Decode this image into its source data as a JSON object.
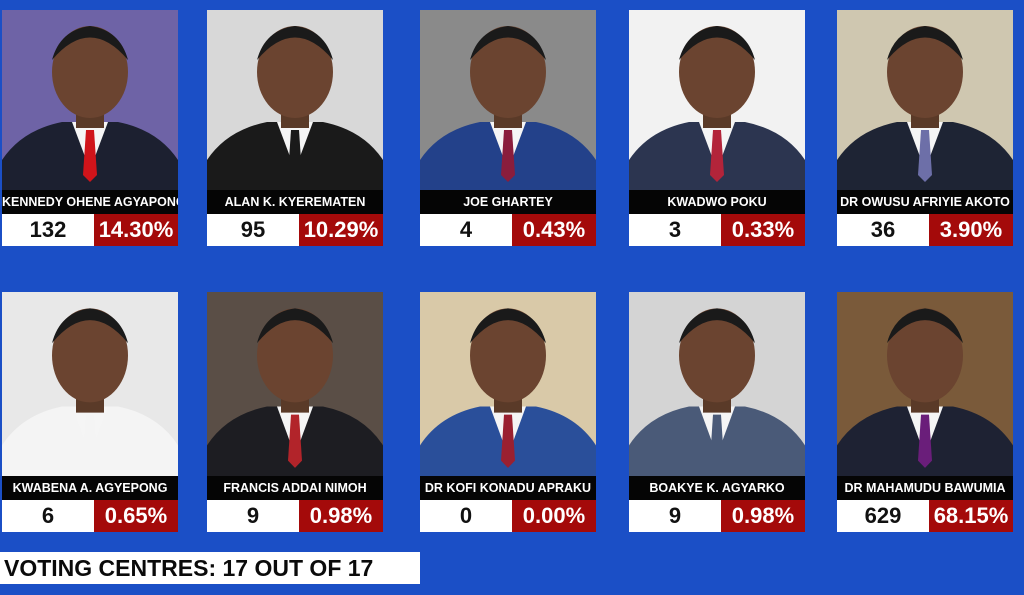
{
  "candidates": [
    {
      "name": "KENNEDY OHENE AGYAPONG",
      "votes": "132",
      "percent": "14.30%",
      "bg": "#6e63a6",
      "suit": "#1c2030",
      "tie": "#d0141a"
    },
    {
      "name": "ALAN K. KYEREMATEN",
      "votes": "95",
      "percent": "10.29%",
      "bg": "#d8d8d8",
      "suit": "#1a1a1a",
      "tie": "#1a1a1a"
    },
    {
      "name": "JOE GHARTEY",
      "votes": "4",
      "percent": "0.43%",
      "bg": "#8a8a8a",
      "suit": "#23418a",
      "tie": "#8a1d3c"
    },
    {
      "name": "KWADWO POKU",
      "votes": "3",
      "percent": "0.33%",
      "bg": "#f2f2f2",
      "suit": "#2c3550",
      "tie": "#b3243a"
    },
    {
      "name": "DR OWUSU AFRIYIE AKOTO",
      "votes": "36",
      "percent": "3.90%",
      "bg": "#cfc7b0",
      "suit": "#1e2434",
      "tie": "#6d6fa8"
    },
    {
      "name": "KWABENA A. AGYEPONG",
      "votes": "6",
      "percent": "0.65%",
      "bg": "#e8e8e8",
      "suit": "#f4f4f4",
      "tie": "#f4f4f4"
    },
    {
      "name": "FRANCIS ADDAI NIMOH",
      "votes": "9",
      "percent": "0.98%",
      "bg": "#5a4e46",
      "suit": "#1d1d22",
      "tie": "#b2242a"
    },
    {
      "name": "DR KOFI KONADU APRAKU",
      "votes": "0",
      "percent": "0.00%",
      "bg": "#d9c9a8",
      "suit": "#2a4f9a",
      "tie": "#9a2030"
    },
    {
      "name": "BOAKYE K. AGYARKO",
      "votes": "9",
      "percent": "0.98%",
      "bg": "#d4d4d4",
      "suit": "#4a5a78",
      "tie": "#4a5a78"
    },
    {
      "name": "DR MAHAMUDU BAWUMIA",
      "votes": "629",
      "percent": "68.15%",
      "bg": "#7a5a3a",
      "suit": "#1e2233",
      "tie": "#6a1e7a"
    }
  ],
  "footer": {
    "text": "VOTING CENTRES: 17 OUT OF 17"
  },
  "colors": {
    "background": "#1b4fc6",
    "percent_box": "#a40a0a",
    "name_bar": "#050505"
  }
}
